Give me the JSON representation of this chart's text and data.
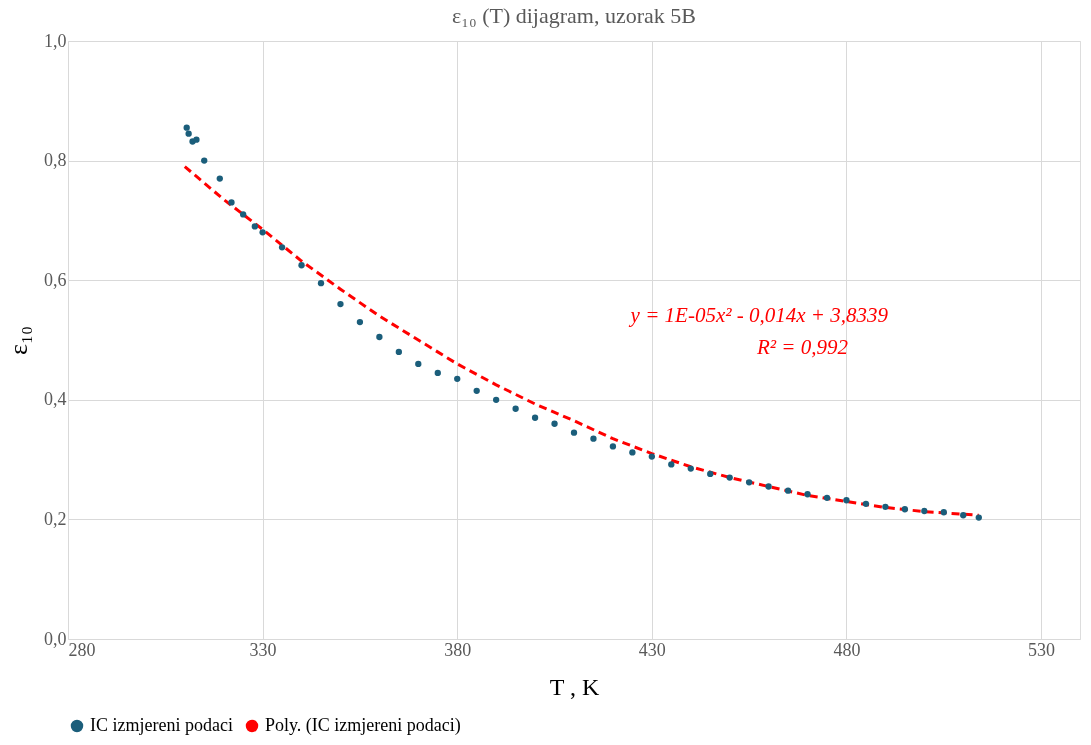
{
  "chart_data": {
    "type": "scatter",
    "title": "ε₁₀ (T) dijagram, uzorak 5B",
    "xlabel": "T , K",
    "ylabel": "ε₁₀",
    "xlim": [
      280,
      540
    ],
    "xticks": [
      280,
      330,
      380,
      430,
      480,
      530
    ],
    "ylim": [
      0,
      1
    ],
    "yticks": [
      {
        "value": 0,
        "label": "0,0"
      },
      {
        "value": 0.2,
        "label": "0,2"
      },
      {
        "value": 0.4,
        "label": "0,4"
      },
      {
        "value": 0.6,
        "label": "0,6"
      },
      {
        "value": 0.8,
        "label": "0,8"
      },
      {
        "value": 1,
        "label": "1,0"
      }
    ],
    "grid": true,
    "legend": "bottom",
    "annotations": [
      "y = 1E-05x² - 0,014x + 3,8339",
      "R² = 0,992"
    ],
    "series": [
      {
        "name": "IC izmjereni podaci",
        "color": "#1b5e7b",
        "marker": "circle",
        "x": [
          310.5,
          311,
          312,
          313,
          315,
          319,
          322,
          325,
          328,
          330,
          335,
          340,
          345,
          350,
          355,
          360,
          365,
          370,
          375,
          380,
          385,
          390,
          395,
          400,
          405,
          410,
          415,
          420,
          425,
          430,
          435,
          440,
          445,
          450,
          455,
          460,
          465,
          470,
          475,
          480,
          485,
          490,
          495,
          500,
          505,
          510,
          514
        ],
        "values": [
          0.855,
          0.845,
          0.832,
          0.835,
          0.8,
          0.77,
          0.73,
          0.71,
          0.69,
          0.68,
          0.655,
          0.625,
          0.595,
          0.56,
          0.53,
          0.505,
          0.48,
          0.46,
          0.445,
          0.435,
          0.415,
          0.4,
          0.385,
          0.37,
          0.36,
          0.345,
          0.335,
          0.322,
          0.312,
          0.305,
          0.292,
          0.285,
          0.276,
          0.27,
          0.262,
          0.255,
          0.248,
          0.242,
          0.236,
          0.232,
          0.226,
          0.221,
          0.217,
          0.214,
          0.212,
          0.207,
          0.203
        ]
      },
      {
        "name": "Poly. (IC izmjereni podaci)",
        "color": "#ff0000",
        "type": "line",
        "marker": "none",
        "line_style": "dashed",
        "x": [
          310,
          320,
          330,
          340,
          350,
          360,
          370,
          380,
          390,
          400,
          410,
          420,
          430,
          440,
          450,
          460,
          470,
          480,
          490,
          500,
          514
        ],
        "values": [
          0.79,
          0.735,
          0.685,
          0.632,
          0.585,
          0.54,
          0.5,
          0.46,
          0.425,
          0.393,
          0.365,
          0.335,
          0.31,
          0.288,
          0.27,
          0.255,
          0.24,
          0.23,
          0.22,
          0.213,
          0.207
        ]
      }
    ]
  }
}
